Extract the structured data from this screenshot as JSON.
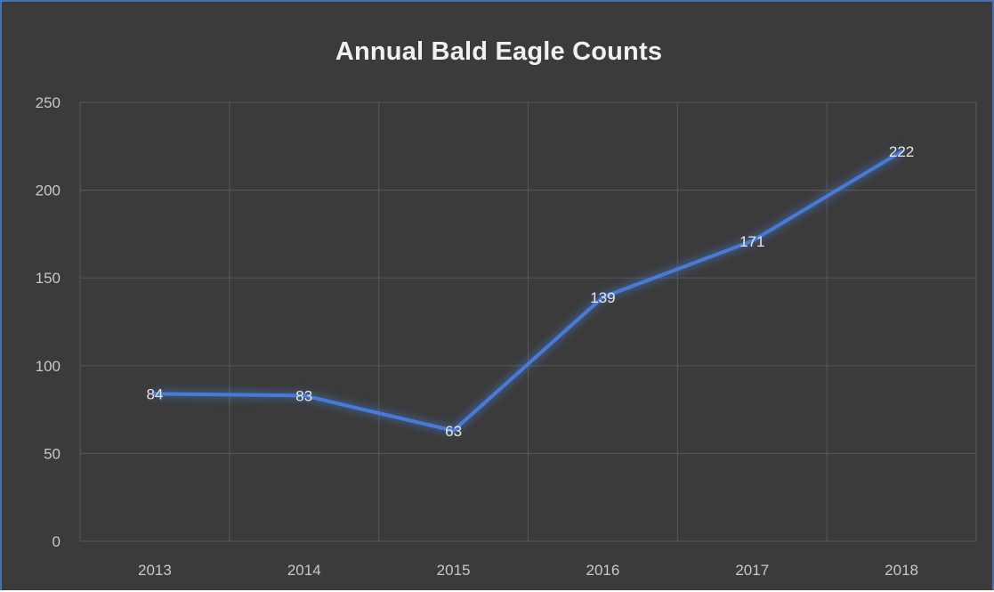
{
  "chart_data": {
    "type": "line",
    "title": "Annual Bald Eagle Counts",
    "xlabel": "",
    "ylabel": "",
    "categories": [
      "2013",
      "2014",
      "2015",
      "2016",
      "2017",
      "2018"
    ],
    "series": [
      {
        "values": [
          84,
          83,
          63,
          139,
          171,
          222
        ]
      }
    ],
    "ylim": [
      0,
      250
    ],
    "yticks": [
      0,
      50,
      100,
      150,
      200,
      250
    ],
    "grid": true,
    "legend": "none",
    "data_labels": true,
    "colors": {
      "background": "#3b3b3b",
      "line": "#4a7fe0",
      "grid": "#555555",
      "border": "#4a6fb3"
    }
  }
}
